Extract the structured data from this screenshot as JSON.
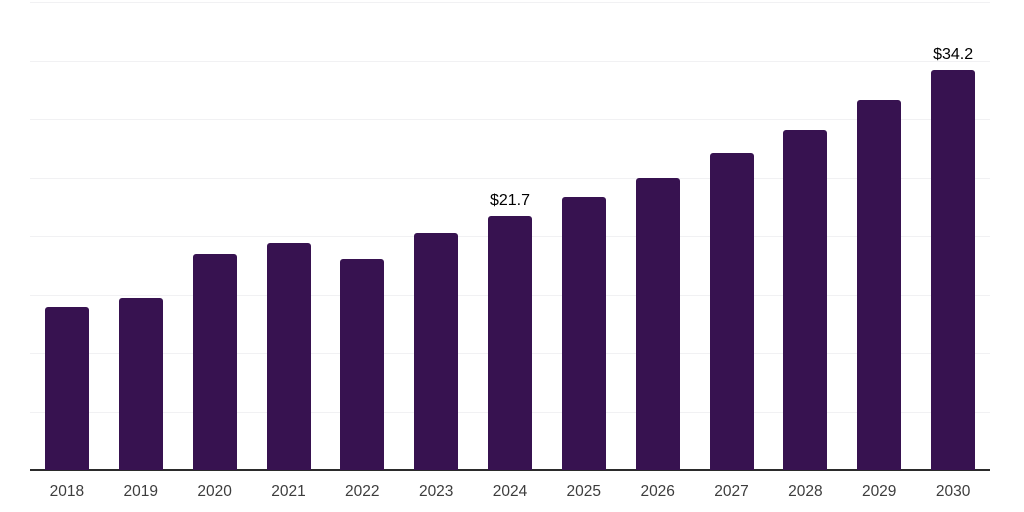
{
  "chart_data": {
    "type": "bar",
    "title": "",
    "xlabel": "",
    "ylabel": "",
    "categories": [
      "2018",
      "2019",
      "2020",
      "2021",
      "2022",
      "2023",
      "2024",
      "2025",
      "2026",
      "2027",
      "2028",
      "2029",
      "2030"
    ],
    "values": [
      13.9,
      14.7,
      18.5,
      19.4,
      18.0,
      20.3,
      21.7,
      23.3,
      25.0,
      27.1,
      29.1,
      31.6,
      34.2
    ],
    "value_labels": [
      "",
      "",
      "",
      "",
      "",
      "",
      "$21.7",
      "",
      "",
      "",
      "",
      "",
      "$34.2"
    ],
    "ylim": [
      0,
      40
    ],
    "gridline_step": 5,
    "grid": "horizontal",
    "legend_position": "none",
    "y_axis_tick_labels_visible": false,
    "colors": {
      "bar": "#371250",
      "axis_line": "#2b2b2b",
      "gridline": "#f1f1f3",
      "value_label": "#000000",
      "tick_label": "#3d3d3d",
      "background": "#ffffff"
    }
  }
}
